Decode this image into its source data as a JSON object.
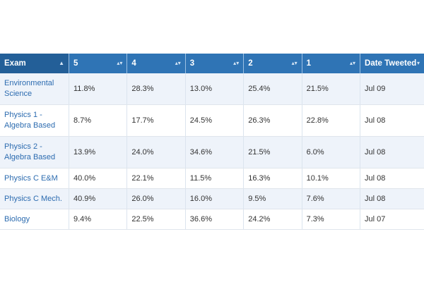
{
  "table": {
    "headers": [
      {
        "label": "Exam",
        "sort": "▲"
      },
      {
        "label": "5",
        "sort": "▴▾"
      },
      {
        "label": "4",
        "sort": "▴▾"
      },
      {
        "label": "3",
        "sort": "▴▾"
      },
      {
        "label": "2",
        "sort": "▴▾"
      },
      {
        "label": "1",
        "sort": "▴▾"
      },
      {
        "label": "Date Tweeted",
        "sort": "▾"
      }
    ],
    "rows": [
      {
        "exam": [
          "Environmental",
          "Science"
        ],
        "cells": [
          "11.8%",
          "28.3%",
          "13.0%",
          "25.4%",
          "21.5%",
          "Jul 09"
        ]
      },
      {
        "exam": [
          "Physics 1 -",
          "Algebra Based"
        ],
        "cells": [
          "8.7%",
          "17.7%",
          "24.5%",
          "26.3%",
          "22.8%",
          "Jul 08"
        ]
      },
      {
        "exam": [
          "Physics 2 -",
          "Algebra Based"
        ],
        "cells": [
          "13.9%",
          "24.0%",
          "34.6%",
          "21.5%",
          "6.0%",
          "Jul 08"
        ]
      },
      {
        "exam": [
          "Physics C E&M"
        ],
        "cells": [
          "40.0%",
          "22.1%",
          "11.5%",
          "16.3%",
          "10.1%",
          "Jul 08"
        ]
      },
      {
        "exam": [
          "Physics C Mech."
        ],
        "cells": [
          "40.9%",
          "26.0%",
          "16.0%",
          "9.5%",
          "7.6%",
          "Jul 08"
        ]
      },
      {
        "exam": [
          "Biology"
        ],
        "cells": [
          "9.4%",
          "22.5%",
          "36.6%",
          "24.2%",
          "7.3%",
          "Jul 07"
        ]
      }
    ]
  }
}
